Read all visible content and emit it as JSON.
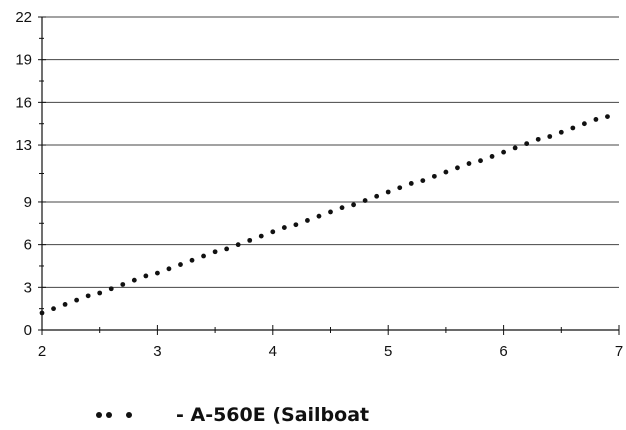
{
  "chart_data": {
    "type": "scatter",
    "title": "",
    "xlabel": "",
    "ylabel": "",
    "xlim": [
      2,
      7
    ],
    "ylim": [
      0,
      22
    ],
    "x_ticks": [
      2,
      3,
      4,
      5,
      6,
      7
    ],
    "x_tick_labels": [
      "2",
      "3",
      "4",
      "5",
      "6",
      "7"
    ],
    "y_ticks": [
      0,
      3,
      6,
      9,
      13,
      16,
      19,
      22
    ],
    "y_tick_labels": [
      "0",
      "3",
      "6",
      "9",
      "13",
      "16",
      "19",
      "22"
    ],
    "grid": "horizontal",
    "legend_position": "bottom",
    "series": [
      {
        "name": "- A-560E (Sailboat",
        "style": "dotted",
        "color": "#111111",
        "x": [
          2.0,
          2.1,
          2.2,
          2.3,
          2.4,
          2.5,
          2.6,
          2.7,
          2.8,
          2.9,
          3.0,
          3.1,
          3.2,
          3.3,
          3.4,
          3.5,
          3.6,
          3.7,
          3.8,
          3.9,
          4.0,
          4.1,
          4.2,
          4.3,
          4.4,
          4.5,
          4.6,
          4.7,
          4.8,
          4.9,
          5.0,
          5.1,
          5.2,
          5.3,
          5.4,
          5.5,
          5.6,
          5.7,
          5.8,
          5.9,
          6.0,
          6.1,
          6.2,
          6.3,
          6.4,
          6.5,
          6.6,
          6.7,
          6.8,
          6.9
        ],
        "y": [
          1.2,
          1.5,
          1.8,
          2.1,
          2.4,
          2.6,
          2.9,
          3.2,
          3.5,
          3.8,
          4.0,
          4.3,
          4.6,
          4.9,
          5.2,
          5.5,
          5.7,
          6.0,
          6.3,
          6.6,
          6.9,
          7.2,
          7.4,
          7.7,
          8.0,
          8.3,
          8.6,
          8.8,
          9.1,
          9.4,
          9.7,
          10.0,
          10.3,
          10.5,
          10.8,
          11.1,
          11.4,
          11.7,
          11.9,
          12.2,
          12.5,
          12.8,
          13.1,
          13.4,
          13.6,
          13.9,
          14.2,
          14.5,
          14.8,
          15.0
        ]
      }
    ]
  }
}
